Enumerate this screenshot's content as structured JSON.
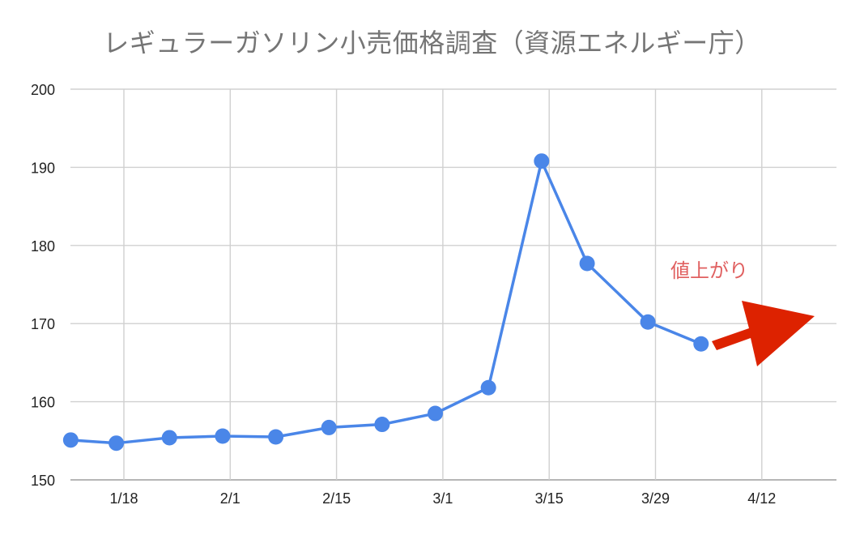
{
  "chart_data": {
    "type": "line",
    "title": "レギュラーガソリン小売価格調査（資源エネルギー庁）",
    "xlabel": "",
    "ylabel": "",
    "x_ticks": [
      "1/18",
      "2/1",
      "2/15",
      "3/1",
      "3/15",
      "3/29",
      "4/12"
    ],
    "y_ticks": [
      "150",
      "160",
      "170",
      "180",
      "190",
      "200"
    ],
    "ylim": [
      150,
      200
    ],
    "grid": true,
    "series": [
      {
        "x": [
          "2022-01-11",
          "2022-01-17",
          "2022-01-24",
          "2022-01-31",
          "2022-02-07",
          "2022-02-14",
          "2022-02-21",
          "2022-02-28",
          "2022-03-07",
          "2022-03-14",
          "2022-03-20",
          "2022-03-28",
          "2022-04-04"
        ],
        "values": [
          155.1,
          154.7,
          155.4,
          155.6,
          155.5,
          156.7,
          157.1,
          158.5,
          161.8,
          190.8,
          177.7,
          170.2,
          167.4
        ],
        "color": "#4a86e8"
      }
    ],
    "annotations": [
      {
        "text": "値上がり",
        "color": "#e06060"
      }
    ],
    "arrow_color": "#dd2200"
  }
}
